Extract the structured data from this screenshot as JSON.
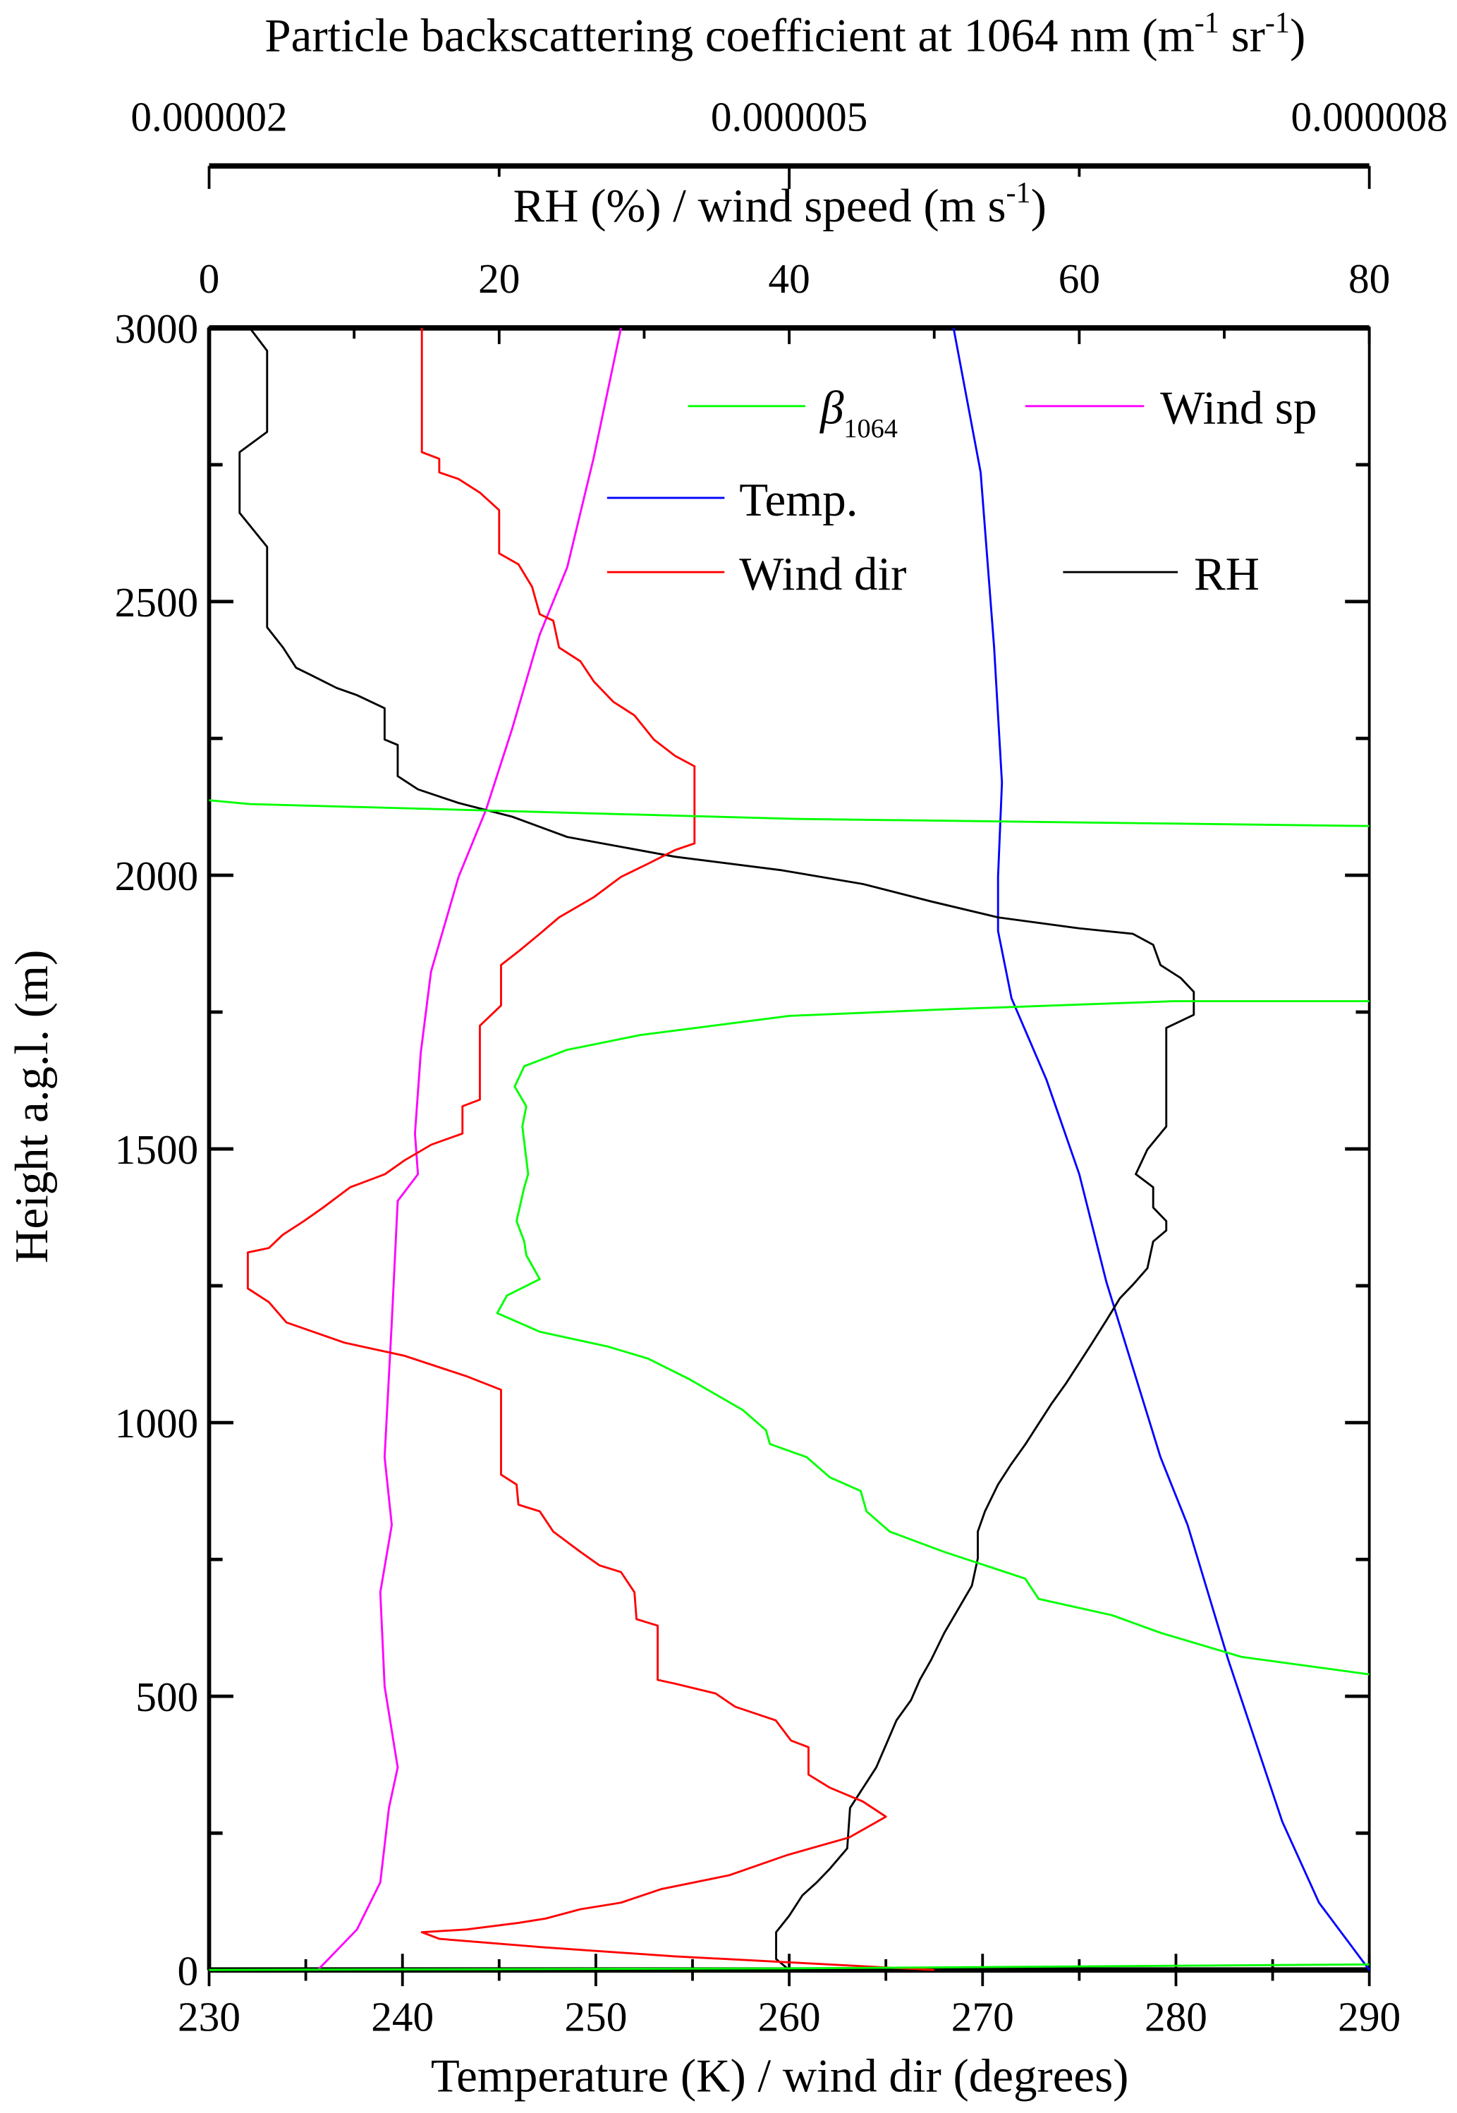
{
  "chart_data": {
    "type": "line",
    "axes": {
      "bottom": {
        "label": "Temperature (K) / wind dir (degrees)",
        "range": [
          230,
          290
        ],
        "ticks": [
          "230",
          "240",
          "250",
          "260",
          "270",
          "280",
          "290"
        ],
        "tick_values": [
          230,
          240,
          250,
          260,
          270,
          280,
          290
        ],
        "minor_step": 5
      },
      "left": {
        "label": "Height a.g.l.  (m)",
        "range": [
          0,
          3000
        ],
        "ticks": [
          "0",
          "500",
          "1000",
          "1500",
          "2000",
          "2500",
          "3000"
        ],
        "tick_values": [
          0,
          500,
          1000,
          1500,
          2000,
          2500,
          3000
        ],
        "minor_step": 250
      },
      "top_rh": {
        "label_parts": {
          "pre": "RH (%) / wind speed (m  s",
          "sup": "-1",
          "post": ")"
        },
        "range": [
          0,
          80
        ],
        "ticks": [
          "0",
          "20",
          "40",
          "60",
          "80"
        ],
        "tick_values": [
          0,
          20,
          40,
          60,
          80
        ],
        "minor_step": 10
      },
      "top_beta": {
        "label_parts": {
          "pre": "Particle backscattering coefficient at 1064 nm (m",
          "sup1": "-1",
          "mid": " sr",
          "sup2": "-1",
          "post": ")"
        },
        "range": [
          2e-06,
          8e-06
        ],
        "ticks": [
          "0.000002",
          "0.000005",
          "0.000008"
        ],
        "tick_values": [
          2e-06,
          5e-06,
          8e-06
        ],
        "minor_step": 1.5e-06
      }
    },
    "grid": false,
    "legend": {
      "placement": "top-right",
      "entries": [
        {
          "series": "beta",
          "label": "β",
          "subscript": "1064"
        },
        {
          "series": "windsp",
          "label": "Wind sp"
        },
        {
          "series": "temp",
          "label": "Temp."
        },
        {
          "series": "winddir",
          "label": "Wind dir"
        },
        {
          "series": "rh",
          "label": "RH"
        }
      ]
    },
    "series": [
      {
        "id": "temp",
        "name": "Temp.",
        "axis": "bottom",
        "color": "#0000ff",
        "points": [
          [
            268.5,
            3000
          ],
          [
            269.9,
            2736
          ],
          [
            270.6,
            2416
          ],
          [
            271.0,
            2169
          ],
          [
            270.8,
            1997
          ],
          [
            270.8,
            1898
          ],
          [
            271.5,
            1775
          ],
          [
            273.3,
            1627
          ],
          [
            275.0,
            1454
          ],
          [
            276.4,
            1257
          ],
          [
            279.2,
            937
          ],
          [
            280.6,
            813
          ],
          [
            282.7,
            567
          ],
          [
            284.1,
            419
          ],
          [
            285.5,
            271
          ],
          [
            287.4,
            123
          ],
          [
            290.0,
            0
          ]
        ]
      },
      {
        "id": "windsp",
        "name": "Wind sp",
        "axis": "top_rh",
        "color": "#ff00ff",
        "points": [
          [
            28.4,
            3000
          ],
          [
            26.5,
            2761
          ],
          [
            24.7,
            2563
          ],
          [
            22.8,
            2440
          ],
          [
            20.9,
            2268
          ],
          [
            19.1,
            2120
          ],
          [
            17.2,
            1997
          ],
          [
            15.3,
            1824
          ],
          [
            14.6,
            1676
          ],
          [
            14.2,
            1528
          ],
          [
            14.4,
            1454
          ],
          [
            13.0,
            1405
          ],
          [
            12.6,
            1183
          ],
          [
            12.1,
            937
          ],
          [
            12.6,
            813
          ],
          [
            11.8,
            690
          ],
          [
            12.1,
            518
          ],
          [
            13.0,
            370
          ],
          [
            12.4,
            296
          ],
          [
            11.8,
            160
          ],
          [
            10.2,
            74
          ],
          [
            7.5,
            0
          ]
        ]
      },
      {
        "id": "rh",
        "name": "RH",
        "axis": "top_rh",
        "color": "#000000",
        "points": [
          [
            2.8,
            3000
          ],
          [
            4.0,
            2958
          ],
          [
            4.0,
            2810
          ],
          [
            2.1,
            2773
          ],
          [
            2.1,
            2662
          ],
          [
            4.0,
            2600
          ],
          [
            4.0,
            2453
          ],
          [
            5.1,
            2416
          ],
          [
            6.0,
            2379
          ],
          [
            7.0,
            2366
          ],
          [
            8.8,
            2342
          ],
          [
            10.2,
            2329
          ],
          [
            12.1,
            2305
          ],
          [
            12.1,
            2248
          ],
          [
            13.0,
            2238
          ],
          [
            13.0,
            2181
          ],
          [
            14.4,
            2157
          ],
          [
            17.2,
            2132
          ],
          [
            20.9,
            2107
          ],
          [
            24.7,
            2070
          ],
          [
            32.1,
            2034
          ],
          [
            39.5,
            2009
          ],
          [
            45.1,
            1984
          ],
          [
            49.8,
            1952
          ],
          [
            54.4,
            1923
          ],
          [
            60.0,
            1903
          ],
          [
            63.7,
            1893
          ],
          [
            65.1,
            1873
          ],
          [
            65.6,
            1836
          ],
          [
            67.0,
            1812
          ],
          [
            67.9,
            1787
          ],
          [
            67.9,
            1745
          ],
          [
            66.0,
            1721
          ],
          [
            66.0,
            1541
          ],
          [
            64.7,
            1499
          ],
          [
            63.9,
            1454
          ],
          [
            65.1,
            1430
          ],
          [
            65.1,
            1393
          ],
          [
            66.0,
            1368
          ],
          [
            66.0,
            1351
          ],
          [
            65.1,
            1331
          ],
          [
            64.7,
            1282
          ],
          [
            63.7,
            1252
          ],
          [
            62.8,
            1227
          ],
          [
            61.9,
            1188
          ],
          [
            60.9,
            1146
          ],
          [
            60.0,
            1109
          ],
          [
            59.1,
            1072
          ],
          [
            58.1,
            1035
          ],
          [
            57.2,
            998
          ],
          [
            56.3,
            961
          ],
          [
            55.3,
            924
          ],
          [
            54.4,
            887
          ],
          [
            53.5,
            838
          ],
          [
            53.0,
            801
          ],
          [
            53.0,
            752
          ],
          [
            52.6,
            702
          ],
          [
            51.8,
            666
          ],
          [
            50.7,
            616
          ],
          [
            49.8,
            567
          ],
          [
            49.0,
            530
          ],
          [
            48.4,
            493
          ],
          [
            47.4,
            456
          ],
          [
            46.8,
            419
          ],
          [
            46.0,
            370
          ],
          [
            45.1,
            333
          ],
          [
            44.2,
            296
          ],
          [
            44.0,
            222
          ],
          [
            42.8,
            185
          ],
          [
            41.9,
            160
          ],
          [
            40.9,
            136
          ],
          [
            40.0,
            99
          ],
          [
            39.1,
            69
          ],
          [
            39.1,
            20
          ],
          [
            40.0,
            0
          ]
        ]
      },
      {
        "id": "winddir",
        "name": "Wind dir",
        "axis": "bottom",
        "color": "#ff0000",
        "points": [
          [
            241.0,
            3000
          ],
          [
            241.0,
            2773
          ],
          [
            241.9,
            2761
          ],
          [
            241.9,
            2736
          ],
          [
            242.9,
            2724
          ],
          [
            244.0,
            2699
          ],
          [
            245.0,
            2667
          ],
          [
            245.0,
            2588
          ],
          [
            246.0,
            2568
          ],
          [
            246.7,
            2527
          ],
          [
            247.1,
            2477
          ],
          [
            247.8,
            2465
          ],
          [
            248.1,
            2416
          ],
          [
            249.2,
            2391
          ],
          [
            249.9,
            2354
          ],
          [
            250.9,
            2317
          ],
          [
            252.0,
            2292
          ],
          [
            253.0,
            2248
          ],
          [
            254.1,
            2218
          ],
          [
            255.1,
            2199
          ],
          [
            255.1,
            2058
          ],
          [
            254.1,
            2046
          ],
          [
            252.7,
            2021
          ],
          [
            251.3,
            1997
          ],
          [
            249.9,
            1960
          ],
          [
            248.1,
            1923
          ],
          [
            247.1,
            1893
          ],
          [
            246.0,
            1861
          ],
          [
            245.1,
            1836
          ],
          [
            245.1,
            1762
          ],
          [
            244.0,
            1725
          ],
          [
            244.0,
            1590
          ],
          [
            243.1,
            1578
          ],
          [
            243.1,
            1528
          ],
          [
            241.5,
            1508
          ],
          [
            240.1,
            1479
          ],
          [
            239.1,
            1454
          ],
          [
            237.3,
            1430
          ],
          [
            235.9,
            1393
          ],
          [
            234.9,
            1368
          ],
          [
            233.8,
            1343
          ],
          [
            233.1,
            1319
          ],
          [
            232.0,
            1311
          ],
          [
            232.0,
            1245
          ],
          [
            233.1,
            1220
          ],
          [
            234.0,
            1183
          ],
          [
            237.0,
            1146
          ],
          [
            240.1,
            1122
          ],
          [
            243.3,
            1085
          ],
          [
            245.1,
            1060
          ],
          [
            245.1,
            905
          ],
          [
            245.9,
            887
          ],
          [
            246.0,
            850
          ],
          [
            247.1,
            838
          ],
          [
            247.8,
            801
          ],
          [
            249.2,
            764
          ],
          [
            250.2,
            739
          ],
          [
            251.3,
            727
          ],
          [
            252.0,
            690
          ],
          [
            252.1,
            641
          ],
          [
            253.2,
            629
          ],
          [
            253.2,
            530
          ],
          [
            254.1,
            523
          ],
          [
            256.2,
            505
          ],
          [
            257.2,
            481
          ],
          [
            259.3,
            456
          ],
          [
            260.1,
            419
          ],
          [
            261.0,
            407
          ],
          [
            261.0,
            357
          ],
          [
            262.1,
            333
          ],
          [
            263.8,
            308
          ],
          [
            265.0,
            280
          ],
          [
            263.1,
            242
          ],
          [
            259.9,
            210
          ],
          [
            256.9,
            173
          ],
          [
            253.4,
            148
          ],
          [
            251.3,
            123
          ],
          [
            249.2,
            111
          ],
          [
            247.4,
            94
          ],
          [
            246.0,
            86
          ],
          [
            243.3,
            74
          ],
          [
            241.0,
            69
          ],
          [
            241.9,
            57
          ],
          [
            247.1,
            42
          ],
          [
            254.1,
            25
          ],
          [
            261.0,
            12
          ],
          [
            267.5,
            0
          ]
        ]
      },
      {
        "id": "beta",
        "name": "β1064",
        "axis": "top_beta",
        "color": "#00ff00",
        "x_scale": 1e-06,
        "segments": [
          [
            [
              2.0,
              2137
            ],
            [
              2.21,
              2130
            ],
            [
              5.03,
              2103
            ],
            [
              8.0,
              2090
            ]
          ],
          [
            [
              8.0,
              1770
            ],
            [
              6.99,
              1770
            ],
            [
              5.8,
              1755
            ],
            [
              5.0,
              1743
            ],
            [
              4.23,
              1708
            ],
            [
              3.85,
              1681
            ],
            [
              3.63,
              1651
            ],
            [
              3.58,
              1614
            ],
            [
              3.64,
              1578
            ],
            [
              3.62,
              1541
            ],
            [
              3.65,
              1454
            ],
            [
              3.63,
              1430
            ],
            [
              3.59,
              1368
            ],
            [
              3.63,
              1331
            ],
            [
              3.64,
              1306
            ],
            [
              3.71,
              1262
            ],
            [
              3.54,
              1232
            ],
            [
              3.49,
              1200
            ],
            [
              3.71,
              1166
            ],
            [
              4.06,
              1139
            ],
            [
              4.27,
              1117
            ],
            [
              4.48,
              1080
            ],
            [
              4.76,
              1023
            ],
            [
              4.88,
              986
            ],
            [
              4.9,
              961
            ],
            [
              5.09,
              937
            ],
            [
              5.21,
              900
            ],
            [
              5.37,
              875
            ],
            [
              5.4,
              838
            ],
            [
              5.52,
              801
            ],
            [
              5.8,
              764
            ],
            [
              6.22,
              715
            ],
            [
              6.29,
              678
            ],
            [
              6.67,
              648
            ],
            [
              6.92,
              616
            ],
            [
              7.34,
              572
            ],
            [
              8.0,
              540
            ]
          ],
          [
            [
              2.0,
              0
            ],
            [
              5.0,
              3
            ],
            [
              8.0,
              10
            ]
          ]
        ]
      }
    ]
  }
}
